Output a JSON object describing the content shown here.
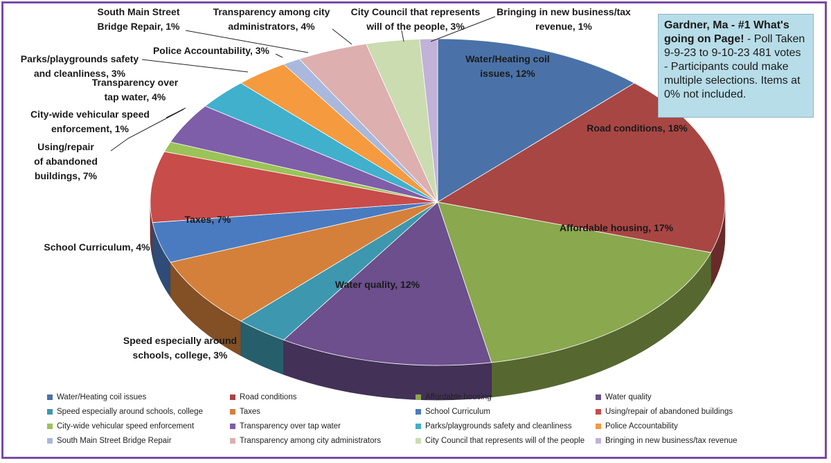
{
  "note": {
    "title": "Gardner, Ma - #1 What's going on Page!",
    "text": "- Poll Taken 9-9-23 to 9-10-23 481 votes - Participants could make multiple selections. Items at 0% not included."
  },
  "chart_data": {
    "type": "pie",
    "title": "",
    "slices": [
      {
        "name": "Water/Heating coil issues",
        "label": "Water/Heating coil issues, 12%",
        "value": 12,
        "color": "#4a72a8"
      },
      {
        "name": "Road conditions",
        "label": "Road conditions, 18%",
        "value": 18,
        "color": "#a84644"
      },
      {
        "name": "Affordable housing",
        "label": "Affordable housing, 17%",
        "value": 17,
        "color": "#8aa84e"
      },
      {
        "name": "Water quality",
        "label": "Water quality, 12%",
        "value": 12,
        "color": "#6c4f8c"
      },
      {
        "name": "Speed especially around schools, college",
        "label": "Speed especially around schools, college, 3%",
        "value": 3,
        "color": "#3d97ae"
      },
      {
        "name": "Taxes",
        "label": "Taxes, 7%",
        "value": 7,
        "color": "#d4803a"
      },
      {
        "name": "School Curriculum",
        "label": "School Curriculum, 4%",
        "value": 4,
        "color": "#4a7bc0"
      },
      {
        "name": "Using/repair of abandoned buildings",
        "label": "Using/repair of abandoned buildings, 7%",
        "value": 7,
        "color": "#c84c4a"
      },
      {
        "name": "City-wide vehicular speed enforcement",
        "label": "City-wide vehicular speed enforcement, 1%",
        "value": 1,
        "color": "#9bc358"
      },
      {
        "name": "Transparency over tap water",
        "label": "Transparency over tap water, 4%",
        "value": 4,
        "color": "#7e5ea8"
      },
      {
        "name": "Parks/playgrounds safety and cleanliness",
        "label": "Parks/playgrounds safety and cleanliness, 3%",
        "value": 3,
        "color": "#41b0cc"
      },
      {
        "name": "Police Accountability",
        "label": "Police Accountability, 3%",
        "value": 3,
        "color": "#f59a3e"
      },
      {
        "name": "South Main Street Bridge Repair",
        "label": "South Main Street Bridge Repair, 1%",
        "value": 1,
        "color": "#a9b8dc"
      },
      {
        "name": "Transparency among city administrators",
        "label": "Transparency among city administrators, 4%",
        "value": 4,
        "color": "#ddafaf"
      },
      {
        "name": "City Council that represents will of the people",
        "label": "City Council that represents will of the people, 3%",
        "value": 3,
        "color": "#cadcb0"
      },
      {
        "name": "Bringing in new business/tax revenue",
        "label": "Bringing in new business/tax revenue, 1%",
        "value": 1,
        "color": "#c1b2d8"
      }
    ],
    "legend_position": "bottom"
  }
}
